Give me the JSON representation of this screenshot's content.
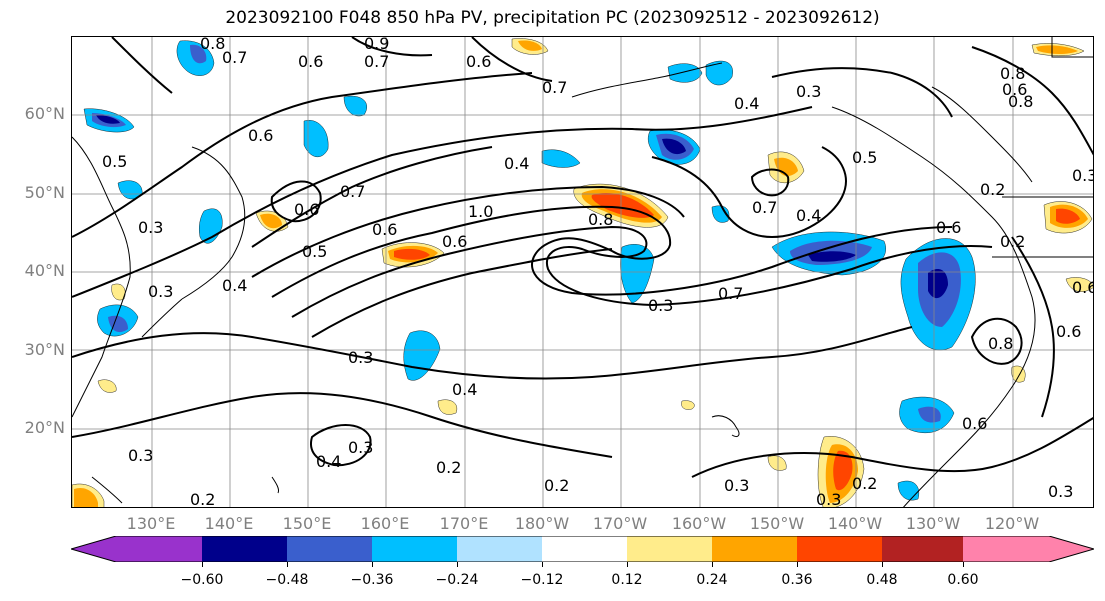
{
  "title": "2023092100 F048 850 hPa PV, precipitation PC (2023092512 - 2023092612)",
  "lat_labels": [
    "60°N",
    "50°N",
    "40°N",
    "30°N",
    "20°N"
  ],
  "lon_labels": [
    "130°E",
    "140°E",
    "150°E",
    "160°E",
    "170°E",
    "180°W",
    "170°W",
    "160°W",
    "150°W",
    "140°W",
    "130°W",
    "120°W"
  ],
  "colorbar": {
    "ticks": [
      "−0.60",
      "−0.48",
      "−0.36",
      "−0.24",
      "−0.12",
      "0.12",
      "0.24",
      "0.36",
      "0.48",
      "0.60"
    ],
    "colors": [
      "#9932cc",
      "#00008b",
      "#3a5fcd",
      "#00bfff",
      "#b0e2ff",
      "#ffffff",
      "#ffec8b",
      "#ffa500",
      "#ff4500",
      "#b22222",
      "#ff82ab"
    ]
  },
  "contour_labels": [
    {
      "text": "0.8"
    },
    {
      "text": "0.7"
    },
    {
      "text": "0.6"
    },
    {
      "text": "0.7"
    },
    {
      "text": "0.9"
    },
    {
      "text": "0.6"
    },
    {
      "text": "0.7"
    },
    {
      "text": "0.4"
    },
    {
      "text": "0.3"
    },
    {
      "text": "0.8"
    },
    {
      "text": "0.6"
    },
    {
      "text": "0.6"
    },
    {
      "text": "0.5"
    },
    {
      "text": "0.4"
    },
    {
      "text": "0.6"
    },
    {
      "text": "0.7"
    },
    {
      "text": "0.3"
    },
    {
      "text": "0.6"
    },
    {
      "text": "0.5"
    },
    {
      "text": "0.6"
    },
    {
      "text": "1.0"
    },
    {
      "text": "0.8"
    },
    {
      "text": "0.7"
    },
    {
      "text": "0.4"
    },
    {
      "text": "0.5"
    },
    {
      "text": "0.3"
    },
    {
      "text": "0.4"
    },
    {
      "text": "0.7"
    },
    {
      "text": "0.2"
    },
    {
      "text": "0.6"
    },
    {
      "text": "0.2"
    },
    {
      "text": "0.3"
    },
    {
      "text": "0.3"
    },
    {
      "text": "0.8"
    },
    {
      "text": "0.3"
    },
    {
      "text": "0.4"
    },
    {
      "text": "0.3"
    },
    {
      "text": "0.4"
    },
    {
      "text": "0.3"
    },
    {
      "text": "0.2"
    },
    {
      "text": "0.2"
    },
    {
      "text": "0.3"
    },
    {
      "text": "0.2"
    },
    {
      "text": "0.3"
    },
    {
      "text": "0.6"
    },
    {
      "text": "0.2"
    },
    {
      "text": "0.3"
    },
    {
      "text": "0.6"
    },
    {
      "text": "0.6"
    },
    {
      "text": "0.8"
    }
  ]
}
